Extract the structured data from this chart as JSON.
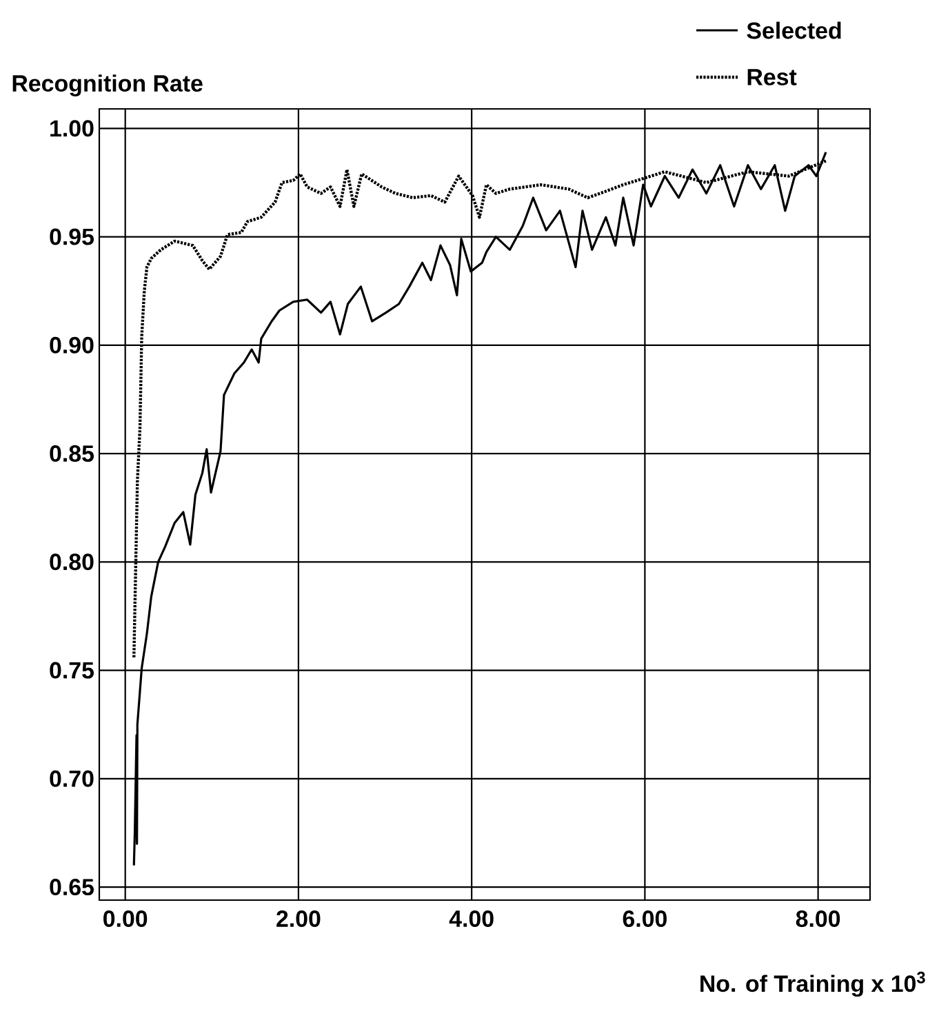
{
  "chart_data": {
    "type": "line",
    "ylabel": "Recognition Rate",
    "xlabel": "No. of Training x 10$^{3}$",
    "xlim": [
      -0.3,
      8.6
    ],
    "ylim": [
      0.644,
      1.009
    ],
    "xticks": [
      {
        "value": 0,
        "label": "0.00"
      },
      {
        "value": 2,
        "label": "2.00"
      },
      {
        "value": 4,
        "label": "4.00"
      },
      {
        "value": 6,
        "label": "6.00"
      },
      {
        "value": 8,
        "label": "8.00"
      }
    ],
    "yticks": [
      {
        "value": 0.65,
        "label": "0.65"
      },
      {
        "value": 0.7,
        "label": "0.70"
      },
      {
        "value": 0.75,
        "label": "0.75"
      },
      {
        "value": 0.8,
        "label": "0.80"
      },
      {
        "value": 0.85,
        "label": "0.85"
      },
      {
        "value": 0.9,
        "label": "0.90"
      },
      {
        "value": 0.95,
        "label": "0.95"
      },
      {
        "value": 1.0,
        "label": "1.00"
      }
    ],
    "grid": true,
    "legend": "top right",
    "series": [
      {
        "name": "Selected",
        "color": "#000000",
        "line_style": "solid",
        "x": [
          0.1,
          0.11,
          0.13,
          0.135,
          0.14,
          0.19,
          0.25,
          0.3,
          0.38,
          0.46,
          0.57,
          0.67,
          0.75,
          0.81,
          0.89,
          0.94,
          0.99,
          1.1,
          1.14,
          1.26,
          1.37,
          1.46,
          1.54,
          1.57,
          1.69,
          1.78,
          1.94,
          2.1,
          2.26,
          2.37,
          2.48,
          2.57,
          2.72,
          2.85,
          3.01,
          3.16,
          3.28,
          3.43,
          3.53,
          3.64,
          3.75,
          3.83,
          3.88,
          3.99,
          4.12,
          4.17,
          4.28,
          4.44,
          4.59,
          4.71,
          4.86,
          5.02,
          5.2,
          5.28,
          5.39,
          5.55,
          5.66,
          5.75,
          5.87,
          5.98,
          6.07,
          6.23,
          6.39,
          6.55,
          6.71,
          6.87,
          7.03,
          7.19,
          7.34,
          7.5,
          7.62,
          7.73,
          7.89,
          7.98,
          8.09
        ],
        "values": [
          0.66,
          0.675,
          0.72,
          0.67,
          0.725,
          0.751,
          0.767,
          0.784,
          0.8,
          0.807,
          0.818,
          0.823,
          0.808,
          0.831,
          0.841,
          0.852,
          0.832,
          0.851,
          0.877,
          0.887,
          0.892,
          0.898,
          0.892,
          0.903,
          0.911,
          0.916,
          0.92,
          0.921,
          0.915,
          0.92,
          0.905,
          0.919,
          0.927,
          0.911,
          0.915,
          0.919,
          0.927,
          0.938,
          0.93,
          0.946,
          0.937,
          0.923,
          0.949,
          0.934,
          0.938,
          0.943,
          0.95,
          0.944,
          0.955,
          0.968,
          0.953,
          0.962,
          0.936,
          0.962,
          0.944,
          0.959,
          0.946,
          0.968,
          0.946,
          0.974,
          0.964,
          0.978,
          0.968,
          0.981,
          0.97,
          0.983,
          0.964,
          0.983,
          0.972,
          0.983,
          0.962,
          0.978,
          0.983,
          0.978,
          0.989
        ]
      },
      {
        "name": "Rest",
        "color": "#000000",
        "line_style": "dotted",
        "x": [
          0.1,
          0.14,
          0.17,
          0.19,
          0.22,
          0.25,
          0.3,
          0.41,
          0.57,
          0.78,
          0.89,
          0.97,
          1.1,
          1.18,
          1.34,
          1.41,
          1.57,
          1.73,
          1.81,
          1.94,
          2.02,
          2.1,
          2.26,
          2.37,
          2.48,
          2.56,
          2.64,
          2.73,
          2.96,
          3.12,
          3.32,
          3.53,
          3.69,
          3.85,
          4.01,
          4.09,
          4.17,
          4.28,
          4.44,
          4.8,
          5.12,
          5.34,
          5.55,
          5.75,
          5.91,
          6.23,
          6.71,
          7.19,
          7.66,
          8.09
        ],
        "values": [
          0.756,
          0.837,
          0.862,
          0.904,
          0.925,
          0.936,
          0.94,
          0.944,
          0.948,
          0.946,
          0.939,
          0.935,
          0.941,
          0.951,
          0.952,
          0.957,
          0.959,
          0.966,
          0.975,
          0.976,
          0.979,
          0.973,
          0.97,
          0.973,
          0.964,
          0.981,
          0.964,
          0.979,
          0.973,
          0.97,
          0.968,
          0.969,
          0.966,
          0.978,
          0.969,
          0.959,
          0.974,
          0.97,
          0.972,
          0.974,
          0.972,
          0.968,
          0.971,
          0.974,
          0.976,
          0.98,
          0.975,
          0.98,
          0.978,
          0.985
        ]
      }
    ]
  }
}
